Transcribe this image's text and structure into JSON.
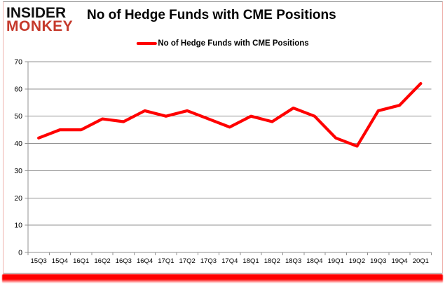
{
  "logo": {
    "line1": "INSIDER",
    "line2": "MONKEY",
    "line1_color": "#111111",
    "line2_color": "#c5392b"
  },
  "header": {
    "title": "No of Hedge Funds with CME Positions"
  },
  "legend": {
    "label": "No of Hedge Funds with CME Positions",
    "marker_color": "#ff0000"
  },
  "chart_data": {
    "type": "line",
    "title": "No of Hedge Funds with CME Positions",
    "categories": [
      "15Q3",
      "15Q4",
      "16Q1",
      "16Q2",
      "16Q3",
      "16Q4",
      "17Q1",
      "17Q2",
      "17Q3",
      "17Q4",
      "18Q1",
      "18Q2",
      "18Q3",
      "18Q4",
      "19Q1",
      "19Q2",
      "19Q3",
      "19Q4",
      "20Q1"
    ],
    "series": [
      {
        "name": "No of Hedge Funds with CME Positions",
        "color": "#ff0000",
        "values": [
          42,
          45,
          45,
          49,
          48,
          52,
          50,
          52,
          49,
          46,
          50,
          48,
          53,
          50,
          42,
          39,
          52,
          54,
          62
        ]
      }
    ],
    "xlabel": "",
    "ylabel": "",
    "ylim": [
      0,
      70
    ],
    "yticks": [
      0,
      10,
      20,
      30,
      40,
      50,
      60,
      70
    ],
    "grid": true,
    "legend_position": "top-center",
    "gridline_color": "#909090",
    "axis_color": "#909090",
    "tick_label_color": "#000000"
  },
  "frame": {
    "bottom_glow_color": "#ff0000"
  }
}
